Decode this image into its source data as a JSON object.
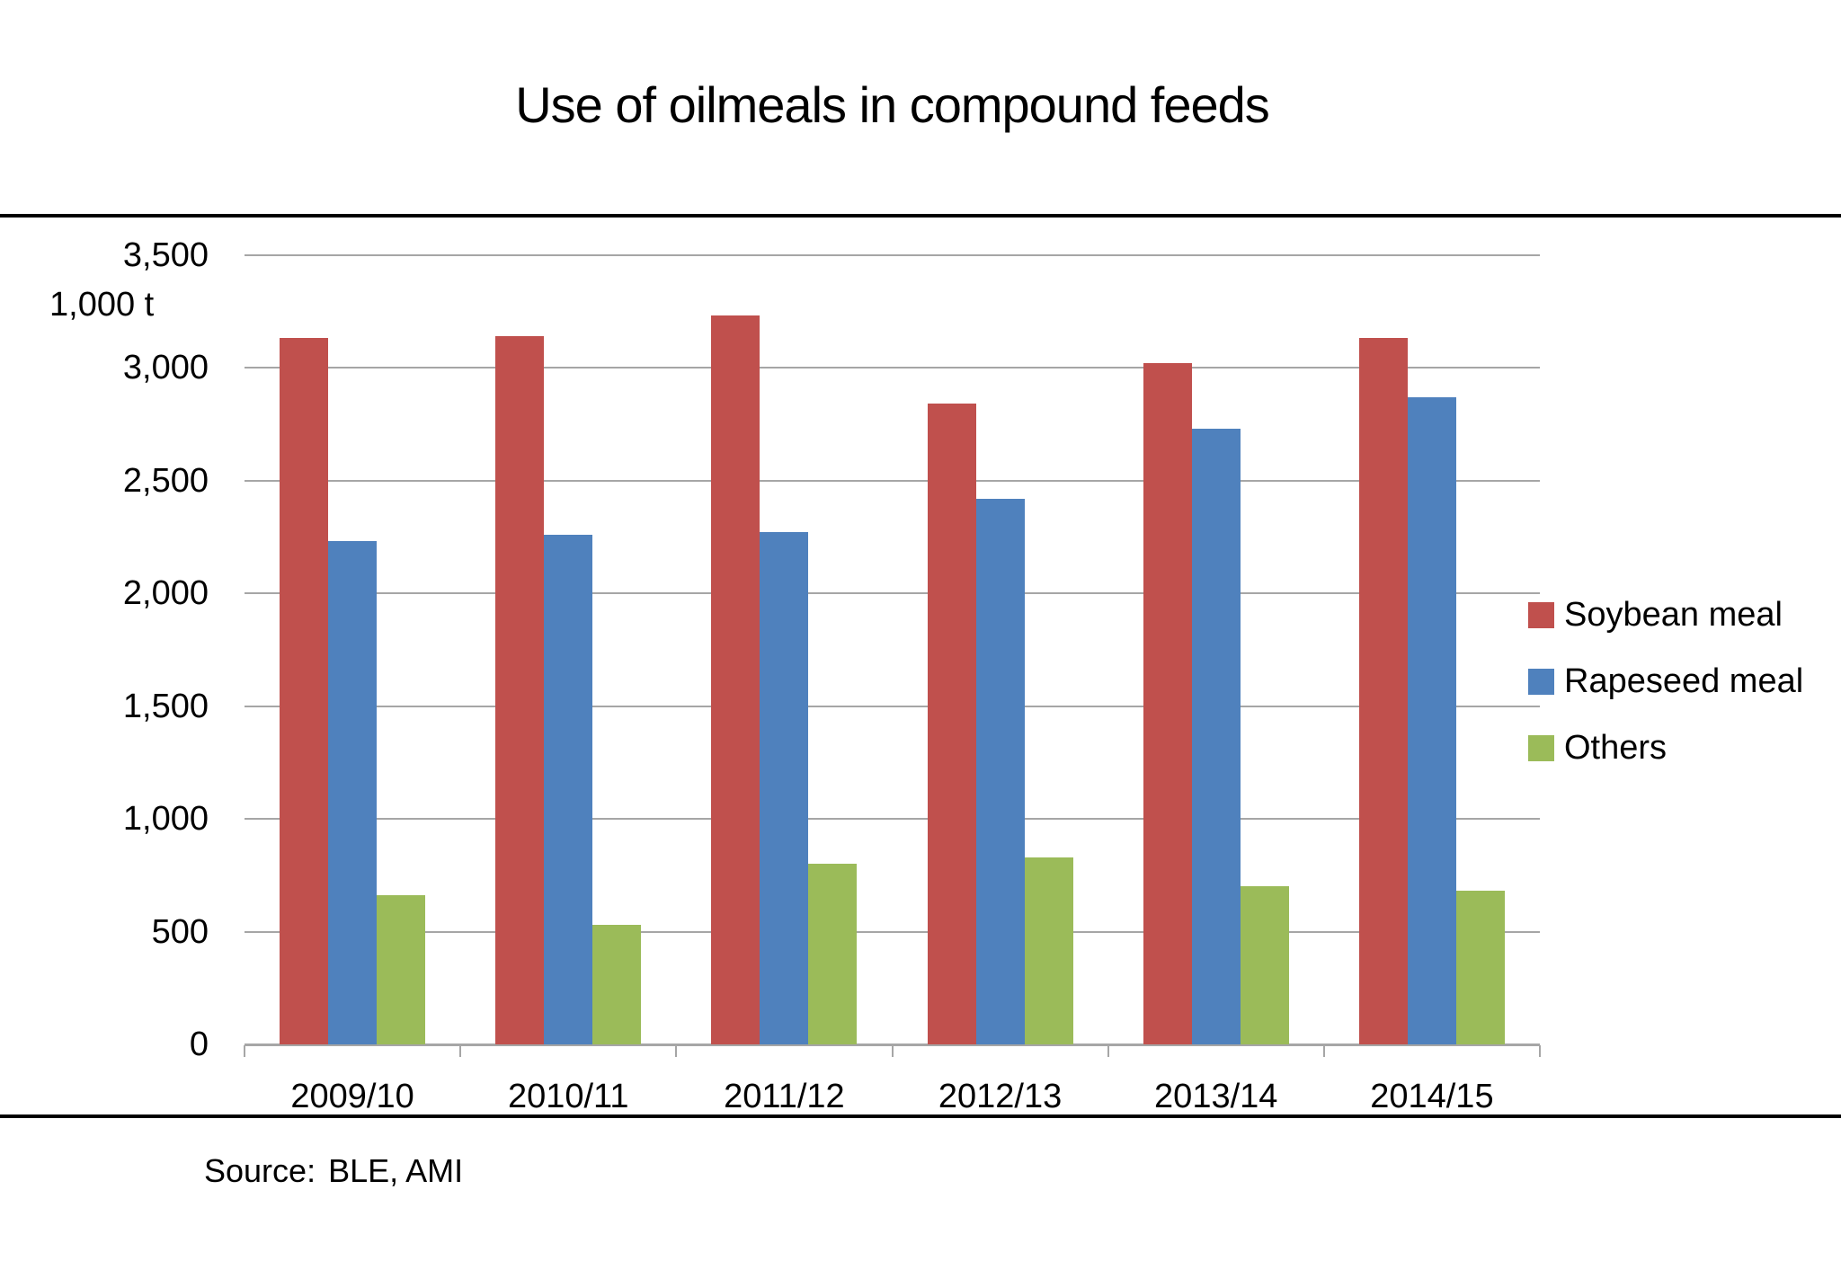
{
  "title": "Use of oilmeals in compound feeds",
  "unit_label": "1,000 t",
  "source": {
    "label": "Source:",
    "value": "BLE, AMI"
  },
  "colors": {
    "soybean_meal": "#C0504D",
    "rapeseed_meal": "#4F81BD",
    "others": "#9BBB59",
    "gridline": "#A6A6A6",
    "axis_line": "#A6A6A6",
    "rule": "#000000"
  },
  "chart_data": {
    "type": "bar",
    "title": "Use of oilmeals in compound feeds",
    "ylabel": "1,000 t",
    "xlabel": "",
    "categories": [
      "2009/10",
      "2010/11",
      "2011/12",
      "2012/13",
      "2013/14",
      "2014/15"
    ],
    "series": [
      {
        "name": "Soybean meal",
        "color": "#C0504D",
        "values": [
          3130,
          3140,
          3230,
          2840,
          3020,
          3130
        ]
      },
      {
        "name": "Rapeseed meal",
        "color": "#4F81BD",
        "values": [
          2230,
          2260,
          2270,
          2420,
          2730,
          2870
        ]
      },
      {
        "name": "Others",
        "color": "#9BBB59",
        "values": [
          660,
          530,
          800,
          830,
          700,
          680
        ]
      }
    ],
    "ylim": [
      0,
      3500
    ],
    "ytick_step": 500,
    "ytick_labels": [
      "0",
      "500",
      "1,000",
      "1,500",
      "2,000",
      "2,500",
      "3,000",
      "3,500"
    ],
    "grid": "horizontal",
    "legend_position": "right"
  }
}
